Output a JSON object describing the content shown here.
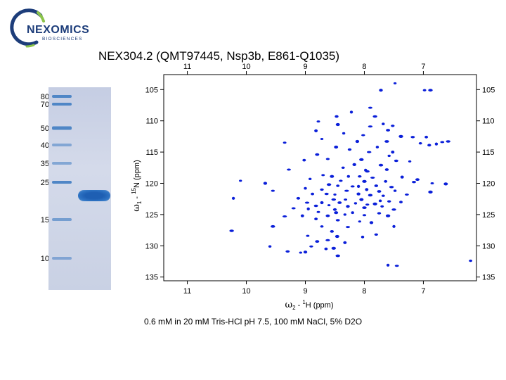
{
  "logo": {
    "brand": "NEXOMICS",
    "sub": "BIOSCIENCES"
  },
  "title": "NEX304.2 (QMT97445,  Nsp3b, E861-Q1035)",
  "gel": {
    "mw_labels": [
      "80",
      "70",
      "50",
      "40",
      "35",
      "25",
      "15",
      "10"
    ]
  },
  "caption": "0.6 mM in 20 mM Tris-HCl pH 7.5, 100 mM NaCl, 5% D2O",
  "chart_data": {
    "type": "scatter",
    "title": "",
    "x_axis": {
      "label": "ω2 - 1H  (ppm)",
      "label_main": "ω",
      "label_sub": "2",
      "label_mid": " - ",
      "label_sup": "1",
      "label_rest": "H  (ppm)",
      "range": [
        11.4,
        6.1
      ],
      "reversed": true,
      "ticks": [
        "11",
        "10",
        "9",
        "8",
        "7"
      ],
      "tick_values": [
        11,
        10,
        9,
        8,
        7
      ]
    },
    "y_axis": {
      "label": "ω1 - 15N  (ppm)",
      "label_main": "ω",
      "label_sub": "1",
      "label_mid": " - ",
      "label_sup": "15",
      "label_rest": "N  (ppm)",
      "range": [
        102.6,
        135.6
      ],
      "reversed": true,
      "ticks": [
        "105",
        "110",
        "115",
        "120",
        "125",
        "130",
        "135"
      ],
      "tick_values": [
        105,
        110,
        115,
        120,
        125,
        130,
        135
      ]
    },
    "peak_color": "#0a1fd9",
    "grid": false,
    "peaks": [
      [
        7.48,
        104.0
      ],
      [
        7.72,
        105.1
      ],
      [
        6.88,
        105.1
      ],
      [
        6.98,
        105.1
      ],
      [
        7.9,
        107.9
      ],
      [
        8.22,
        108.6
      ],
      [
        8.47,
        109.3
      ],
      [
        7.82,
        109.3
      ],
      [
        8.78,
        110.1
      ],
      [
        8.45,
        110.6
      ],
      [
        7.68,
        110.5
      ],
      [
        7.52,
        110.8
      ],
      [
        7.9,
        110.9
      ],
      [
        8.82,
        111.6
      ],
      [
        7.6,
        111.5
      ],
      [
        8.35,
        112.0
      ],
      [
        8.02,
        112.3
      ],
      [
        7.38,
        112.5
      ],
      [
        6.95,
        112.6
      ],
      [
        7.18,
        112.6
      ],
      [
        8.72,
        112.9
      ],
      [
        8.12,
        113.3
      ],
      [
        7.62,
        113.3
      ],
      [
        7.05,
        113.6
      ],
      [
        6.68,
        113.4
      ],
      [
        6.78,
        113.7
      ],
      [
        6.9,
        113.9
      ],
      [
        6.58,
        113.3
      ],
      [
        9.35,
        113.5
      ],
      [
        8.48,
        114.2
      ],
      [
        7.78,
        114.2
      ],
      [
        8.25,
        114.6
      ],
      [
        7.92,
        115.0
      ],
      [
        7.52,
        115.0
      ],
      [
        8.8,
        115.4
      ],
      [
        7.58,
        115.6
      ],
      [
        8.62,
        116.1
      ],
      [
        8.05,
        116.2
      ],
      [
        9.02,
        116.3
      ],
      [
        7.46,
        116.4
      ],
      [
        7.23,
        116.5
      ],
      [
        8.17,
        117.0
      ],
      [
        7.72,
        117.1
      ],
      [
        8.36,
        117.5
      ],
      [
        9.28,
        117.8
      ],
      [
        7.98,
        117.9
      ],
      [
        7.62,
        117.8
      ],
      [
        7.95,
        118.1
      ],
      [
        8.7,
        118.7
      ],
      [
        8.55,
        118.9
      ],
      [
        8.27,
        118.9
      ],
      [
        8.08,
        118.9
      ],
      [
        7.86,
        119.1
      ],
      [
        7.36,
        119.0
      ],
      [
        7.1,
        119.4
      ],
      [
        8.92,
        119.3
      ],
      [
        8.4,
        119.6
      ],
      [
        8.0,
        119.7
      ],
      [
        7.64,
        119.7
      ],
      [
        7.16,
        119.8
      ],
      [
        10.1,
        119.6
      ],
      [
        9.68,
        120.0
      ],
      [
        8.6,
        120.2
      ],
      [
        8.45,
        120.4
      ],
      [
        8.2,
        120.5
      ],
      [
        8.1,
        120.5
      ],
      [
        7.8,
        120.4
      ],
      [
        7.54,
        120.6
      ],
      [
        6.85,
        120.0
      ],
      [
        6.62,
        120.1
      ],
      [
        9.0,
        120.8
      ],
      [
        8.72,
        121.0
      ],
      [
        8.3,
        121.2
      ],
      [
        7.96,
        121.0
      ],
      [
        7.75,
        121.3
      ],
      [
        7.48,
        121.2
      ],
      [
        9.55,
        121.2
      ],
      [
        6.88,
        121.4
      ],
      [
        8.88,
        121.7
      ],
      [
        8.64,
        121.7
      ],
      [
        8.5,
        121.8
      ],
      [
        8.1,
        121.7
      ],
      [
        7.9,
        121.9
      ],
      [
        7.68,
        122.0
      ],
      [
        7.28,
        121.8
      ],
      [
        10.22,
        122.4
      ],
      [
        9.12,
        122.4
      ],
      [
        8.52,
        122.6
      ],
      [
        8.32,
        122.6
      ],
      [
        8.05,
        122.6
      ],
      [
        7.73,
        122.8
      ],
      [
        7.58,
        122.9
      ],
      [
        8.97,
        123.1
      ],
      [
        8.72,
        123.1
      ],
      [
        8.42,
        123.1
      ],
      [
        8.15,
        123.2
      ],
      [
        7.95,
        123.4
      ],
      [
        7.82,
        123.3
      ],
      [
        7.38,
        123.0
      ],
      [
        8.82,
        123.6
      ],
      [
        8.6,
        123.5
      ],
      [
        8.28,
        123.7
      ],
      [
        8.0,
        123.9
      ],
      [
        7.7,
        123.7
      ],
      [
        9.2,
        124.0
      ],
      [
        8.95,
        124.1
      ],
      [
        8.5,
        124.2
      ],
      [
        7.5,
        124.2
      ],
      [
        8.78,
        124.6
      ],
      [
        8.48,
        124.7
      ],
      [
        8.2,
        124.7
      ],
      [
        7.75,
        124.8
      ],
      [
        9.35,
        125.3
      ],
      [
        9.05,
        125.2
      ],
      [
        8.62,
        125.2
      ],
      [
        8.33,
        125.0
      ],
      [
        8.0,
        125.1
      ],
      [
        7.6,
        125.2
      ],
      [
        8.82,
        125.7
      ],
      [
        8.45,
        125.9
      ],
      [
        8.08,
        126.1
      ],
      [
        7.88,
        126.3
      ],
      [
        9.55,
        126.9
      ],
      [
        8.72,
        126.9
      ],
      [
        8.28,
        127.0
      ],
      [
        7.5,
        126.9
      ],
      [
        8.55,
        127.7
      ],
      [
        10.25,
        127.6
      ],
      [
        8.96,
        128.4
      ],
      [
        8.46,
        128.5
      ],
      [
        8.03,
        128.6
      ],
      [
        7.8,
        128.2
      ],
      [
        8.62,
        129.1
      ],
      [
        8.33,
        129.5
      ],
      [
        8.8,
        129.3
      ],
      [
        9.6,
        130.1
      ],
      [
        8.9,
        130.1
      ],
      [
        8.52,
        130.4
      ],
      [
        8.65,
        130.5
      ],
      [
        9.3,
        130.9
      ],
      [
        9.08,
        131.1
      ],
      [
        9.0,
        131.0
      ],
      [
        8.45,
        131.6
      ],
      [
        6.2,
        132.4
      ],
      [
        7.45,
        133.2
      ],
      [
        7.6,
        133.1
      ]
    ]
  }
}
